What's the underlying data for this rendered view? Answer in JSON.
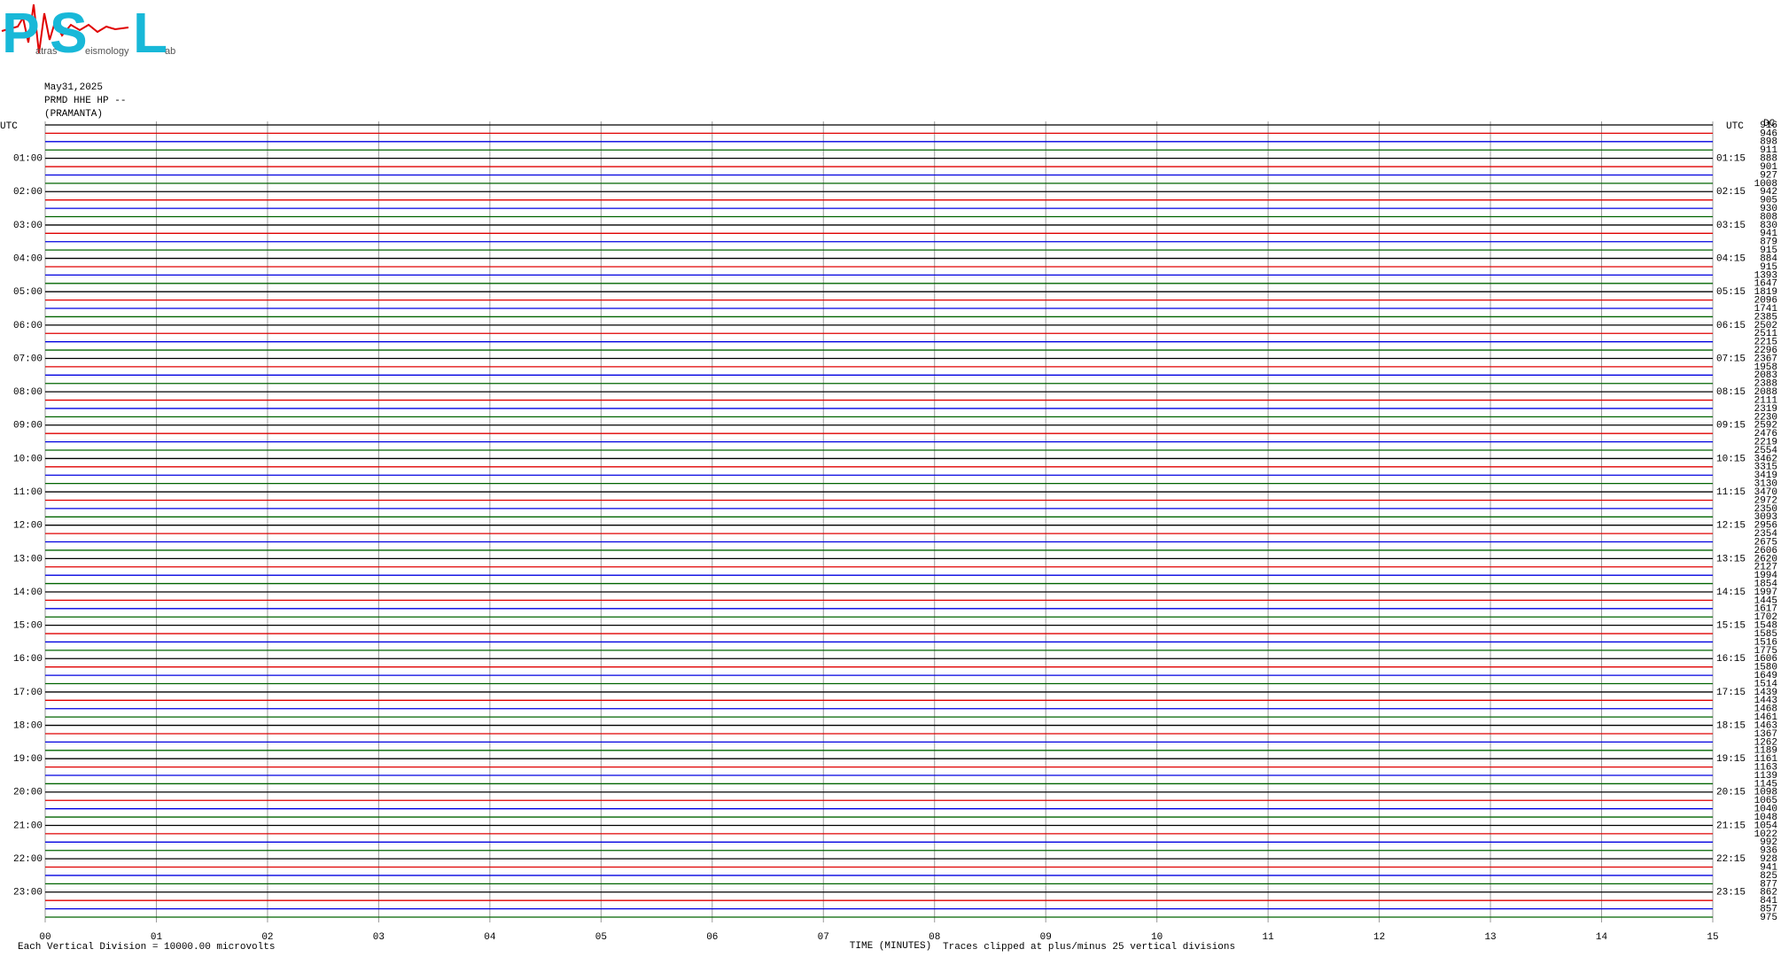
{
  "chart_data": {
    "type": "helicorder",
    "logo": {
      "p": "P",
      "p_rest": "atras",
      "s": "S",
      "s_rest": "eismology",
      "l": "L",
      "l_rest": "ab"
    },
    "date": "May31,2025",
    "station": "PRMD HHE HP --",
    "station_name": "(PRAMANTA)",
    "left_header": "UTC",
    "right_header": "UTC",
    "value_header": "DC",
    "x_label": "TIME (MINUTES)",
    "scale_note": "Each Vertical Division = 10000.00 microvolts",
    "clip_note": "Traces clipped at plus/minus 25 vertical divisions",
    "xlim": [
      0,
      15
    ],
    "xticks": [
      {
        "value": 0,
        "label": "00"
      },
      {
        "value": 1,
        "label": "01"
      },
      {
        "value": 2,
        "label": "02"
      },
      {
        "value": 3,
        "label": "03"
      },
      {
        "value": 4,
        "label": "04"
      },
      {
        "value": 5,
        "label": "05"
      },
      {
        "value": 6,
        "label": "06"
      },
      {
        "value": 7,
        "label": "07"
      },
      {
        "value": 8,
        "label": "08"
      },
      {
        "value": 9,
        "label": "09"
      },
      {
        "value": 10,
        "label": "10"
      },
      {
        "value": 11,
        "label": "11"
      },
      {
        "value": 12,
        "label": "12"
      },
      {
        "value": 13,
        "label": "13"
      },
      {
        "value": 14,
        "label": "14"
      },
      {
        "value": 15,
        "label": "15"
      }
    ],
    "left_labels": [
      "01:00",
      "02:00",
      "03:00",
      "04:00",
      "05:00",
      "06:00",
      "07:00",
      "08:00",
      "09:00",
      "10:00",
      "11:00",
      "12:00",
      "13:00",
      "14:00",
      "15:00",
      "16:00",
      "17:00",
      "18:00",
      "19:00",
      "20:00",
      "21:00",
      "22:00",
      "23:00"
    ],
    "right_labels": [
      "01:15",
      "02:15",
      "03:15",
      "04:15",
      "05:15",
      "06:15",
      "07:15",
      "08:15",
      "09:15",
      "10:15",
      "11:15",
      "12:15",
      "13:15",
      "14:15",
      "15:15",
      "16:15",
      "17:15",
      "18:15",
      "19:15",
      "20:15",
      "21:15",
      "22:15",
      "23:15"
    ],
    "trace_colors": [
      "#000000",
      "#e00000",
      "#0000e0",
      "#006400"
    ],
    "trace_values": [
      916,
      946,
      898,
      911,
      888,
      901,
      927,
      1008,
      942,
      905,
      930,
      808,
      830,
      941,
      879,
      915,
      884,
      915,
      1393,
      1647,
      1819,
      2096,
      1741,
      2385,
      2502,
      2511,
      2215,
      2296,
      2367,
      1958,
      2083,
      2388,
      2088,
      2111,
      2319,
      2230,
      2592,
      2476,
      2219,
      2554,
      3462,
      3315,
      3419,
      3130,
      3470,
      2972,
      2350,
      3093,
      2956,
      2354,
      2675,
      2606,
      2620,
      2127,
      1994,
      1854,
      1997,
      1445,
      1617,
      1702,
      1548,
      1585,
      1516,
      1775,
      1606,
      1580,
      1649,
      1514,
      1439,
      1443,
      1468,
      1461,
      1463,
      1367,
      1262,
      1189,
      1161,
      1163,
      1139,
      1145,
      1098,
      1065,
      1040,
      1048,
      1054,
      1022,
      992,
      936,
      928,
      941,
      825,
      877,
      862,
      841,
      857,
      975
    ]
  }
}
